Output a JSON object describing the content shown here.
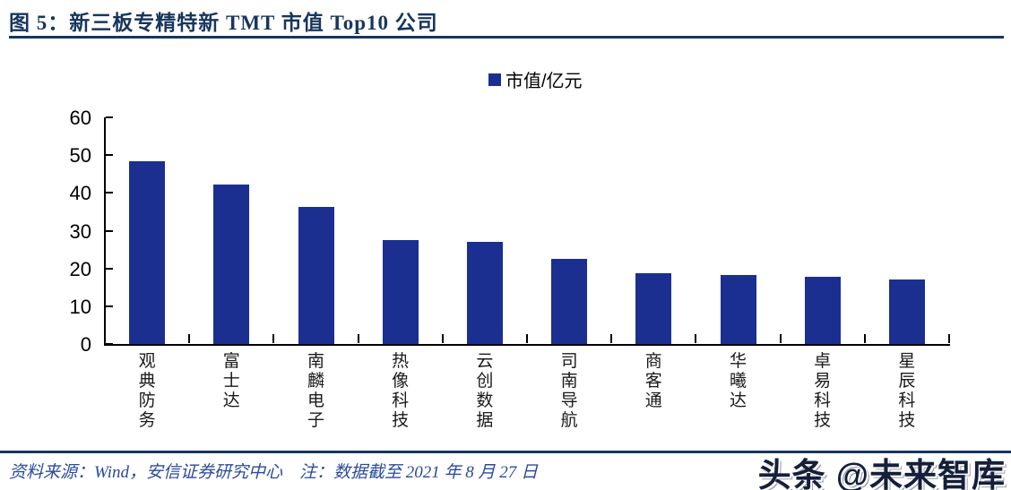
{
  "header": {
    "title": "图 5：新三板专精特新 TMT 市值 Top10 公司"
  },
  "chart_data": {
    "type": "bar",
    "legend": [
      "市值/亿元"
    ],
    "legend_position": "top-center",
    "categories": [
      "观典防务",
      "富士达",
      "南麟电子",
      "热像科技",
      "云创数据",
      "司南导航",
      "商客通",
      "华曦达",
      "卓易科技",
      "星辰科技"
    ],
    "series": [
      {
        "name": "市值/亿元",
        "values": [
          48.5,
          42.3,
          36.3,
          27.5,
          27.0,
          22.6,
          18.8,
          18.3,
          17.8,
          17.0
        ]
      }
    ],
    "ylabel": "",
    "xlabel": "",
    "ylim": [
      0,
      60
    ],
    "yticks": [
      0,
      10,
      20,
      30,
      40,
      50,
      60
    ],
    "grid": false,
    "bar_color": "#1B2F90",
    "axis_color": "#000000"
  },
  "footer": {
    "source_note": "资料来源：Wind，安信证券研究中心　注：数据截至 2021 年 8 月 27 日"
  },
  "watermark": {
    "text": "头条 @未来智库"
  },
  "colors": {
    "title_navy": "#17365D",
    "bar_blue": "#1B2F90",
    "footer_blue": "#2A4A9C"
  }
}
